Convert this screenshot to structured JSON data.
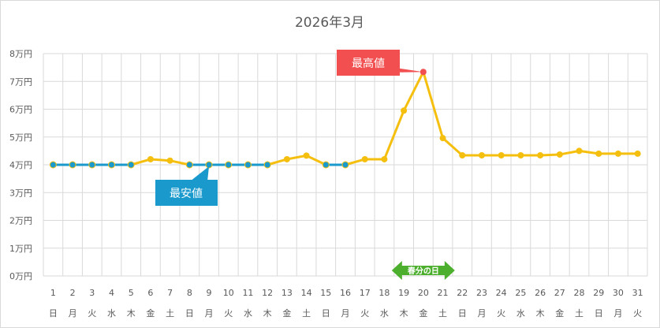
{
  "chart_data": {
    "type": "line",
    "title": "2026年3月",
    "ylabel": "",
    "xlabel": "",
    "ylim": [
      0,
      80000
    ],
    "y_ticks": [
      "0万円",
      "1万円",
      "2万円",
      "3万円",
      "4万円",
      "5万円",
      "6万円",
      "7万円",
      "8万円"
    ],
    "x": [
      "1",
      "2",
      "3",
      "4",
      "5",
      "6",
      "7",
      "8",
      "9",
      "10",
      "11",
      "12",
      "13",
      "14",
      "15",
      "16",
      "17",
      "18",
      "19",
      "20",
      "21",
      "22",
      "23",
      "24",
      "25",
      "26",
      "27",
      "28",
      "29",
      "30",
      "31"
    ],
    "weekdays": [
      "日",
      "月",
      "火",
      "水",
      "木",
      "金",
      "土",
      "日",
      "月",
      "火",
      "水",
      "木",
      "金",
      "土",
      "日",
      "月",
      "火",
      "水",
      "木",
      "金",
      "土",
      "日",
      "月",
      "火",
      "水",
      "木",
      "金",
      "土",
      "日",
      "月",
      "火"
    ],
    "values": [
      40000,
      40000,
      40000,
      40000,
      40000,
      42000,
      41500,
      40000,
      40000,
      40000,
      40000,
      40000,
      42000,
      43300,
      40000,
      40000,
      42000,
      42000,
      59500,
      73400,
      49600,
      43400,
      43400,
      43400,
      43400,
      43400,
      43700,
      45000,
      44000,
      44000,
      44000
    ],
    "grid": true,
    "series_color": "#f5bf0f",
    "lowest_color": "#1a9acc",
    "highest_color": "#f25050",
    "annotations": {
      "highest_label": "最高値",
      "lowest_label": "最安値",
      "holiday_label": "春分の日",
      "holiday_day": "20",
      "holiday_color": "#4caf2d"
    }
  }
}
